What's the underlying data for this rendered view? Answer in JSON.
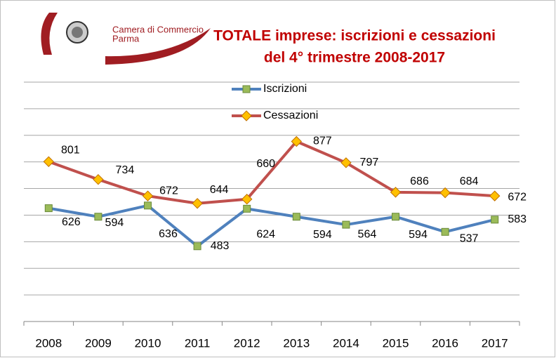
{
  "logo": {
    "line1": "Camera di Commercio",
    "line2": "Parma"
  },
  "chart_data": {
    "type": "line",
    "title": [
      "TOTALE imprese: iscrizioni e cessazioni",
      "del 4°  trimestre 2008-2017"
    ],
    "categories": [
      "2008",
      "2009",
      "2010",
      "2011",
      "2012",
      "2013",
      "2014",
      "2015",
      "2016",
      "2017"
    ],
    "series": [
      {
        "name": "Iscrizioni",
        "color": "#4f81bd",
        "marker": "square",
        "marker_color": "#9bbb59",
        "values": [
          626,
          594,
          636,
          483,
          624,
          594,
          564,
          594,
          537,
          583
        ]
      },
      {
        "name": "Cessazioni",
        "color": "#c0504d",
        "marker": "diamond",
        "marker_color": "#ffc000",
        "values": [
          801,
          734,
          672,
          644,
          660,
          877,
          797,
          686,
          684,
          672
        ]
      }
    ],
    "ylim": [
      200,
      1100
    ],
    "yticks": [
      200,
      300,
      400,
      500,
      600,
      700,
      800,
      900,
      1000,
      1100
    ],
    "grid": true,
    "legend": "top"
  }
}
